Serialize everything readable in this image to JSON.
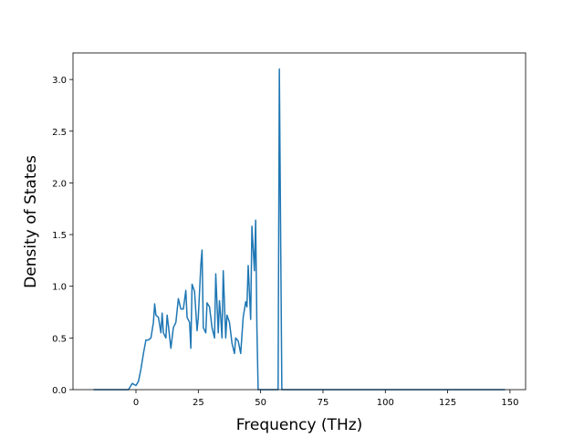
{
  "chart_data": {
    "type": "line",
    "x_label": "Frequency (THz)",
    "y_label": "Density of States",
    "color": "#1f77b4",
    "x": [
      -17,
      -3,
      -1.5,
      0,
      1,
      2,
      3,
      4,
      5,
      6,
      7,
      7.5,
      8,
      9,
      10,
      10.5,
      11,
      12,
      12.5,
      13,
      14,
      15,
      16,
      17,
      18,
      19,
      20,
      20.5,
      21.5,
      22,
      22.5,
      23.5,
      24.5,
      25,
      26,
      26.5,
      27,
      28,
      28.5,
      29.5,
      30.5,
      31.5,
      32,
      33,
      33.5,
      34,
      34.5,
      35,
      36,
      36.5,
      37.5,
      38.5,
      39.5,
      40,
      41,
      42,
      43,
      44,
      44.5,
      45,
      46,
      46.5,
      47.5,
      48,
      48.5,
      49,
      57,
      57.5,
      58.5,
      148
    ],
    "values": [
      0,
      0,
      0.06,
      0.04,
      0.08,
      0.2,
      0.35,
      0.48,
      0.48,
      0.5,
      0.65,
      0.83,
      0.72,
      0.7,
      0.55,
      0.74,
      0.55,
      0.5,
      0.72,
      0.62,
      0.4,
      0.6,
      0.65,
      0.88,
      0.78,
      0.78,
      0.96,
      0.7,
      0.65,
      0.4,
      1.02,
      0.95,
      0.57,
      0.7,
      1.2,
      1.35,
      0.6,
      0.55,
      0.84,
      0.8,
      0.6,
      0.5,
      1.12,
      0.55,
      0.86,
      0.7,
      0.5,
      1.15,
      0.5,
      0.72,
      0.65,
      0.45,
      0.35,
      0.5,
      0.47,
      0.35,
      0.7,
      0.85,
      0.8,
      1.2,
      0.68,
      1.58,
      1.15,
      1.64,
      0.6,
      0,
      0,
      3.1,
      0,
      0
    ],
    "xlim": [
      -25.25,
      156.25
    ],
    "ylim": [
      0,
      3.257
    ],
    "xticks": [
      0,
      25,
      50,
      75,
      100,
      125,
      150
    ],
    "yticks": [
      {
        "value": 0,
        "label": "0.0"
      },
      {
        "value": 0.5,
        "label": "0.5"
      },
      {
        "value": 1,
        "label": "1.0"
      },
      {
        "value": 1.5,
        "label": "1.5"
      },
      {
        "value": 2,
        "label": "2.0"
      },
      {
        "value": 2.5,
        "label": "2.5"
      },
      {
        "value": 3,
        "label": "3.0"
      }
    ]
  }
}
